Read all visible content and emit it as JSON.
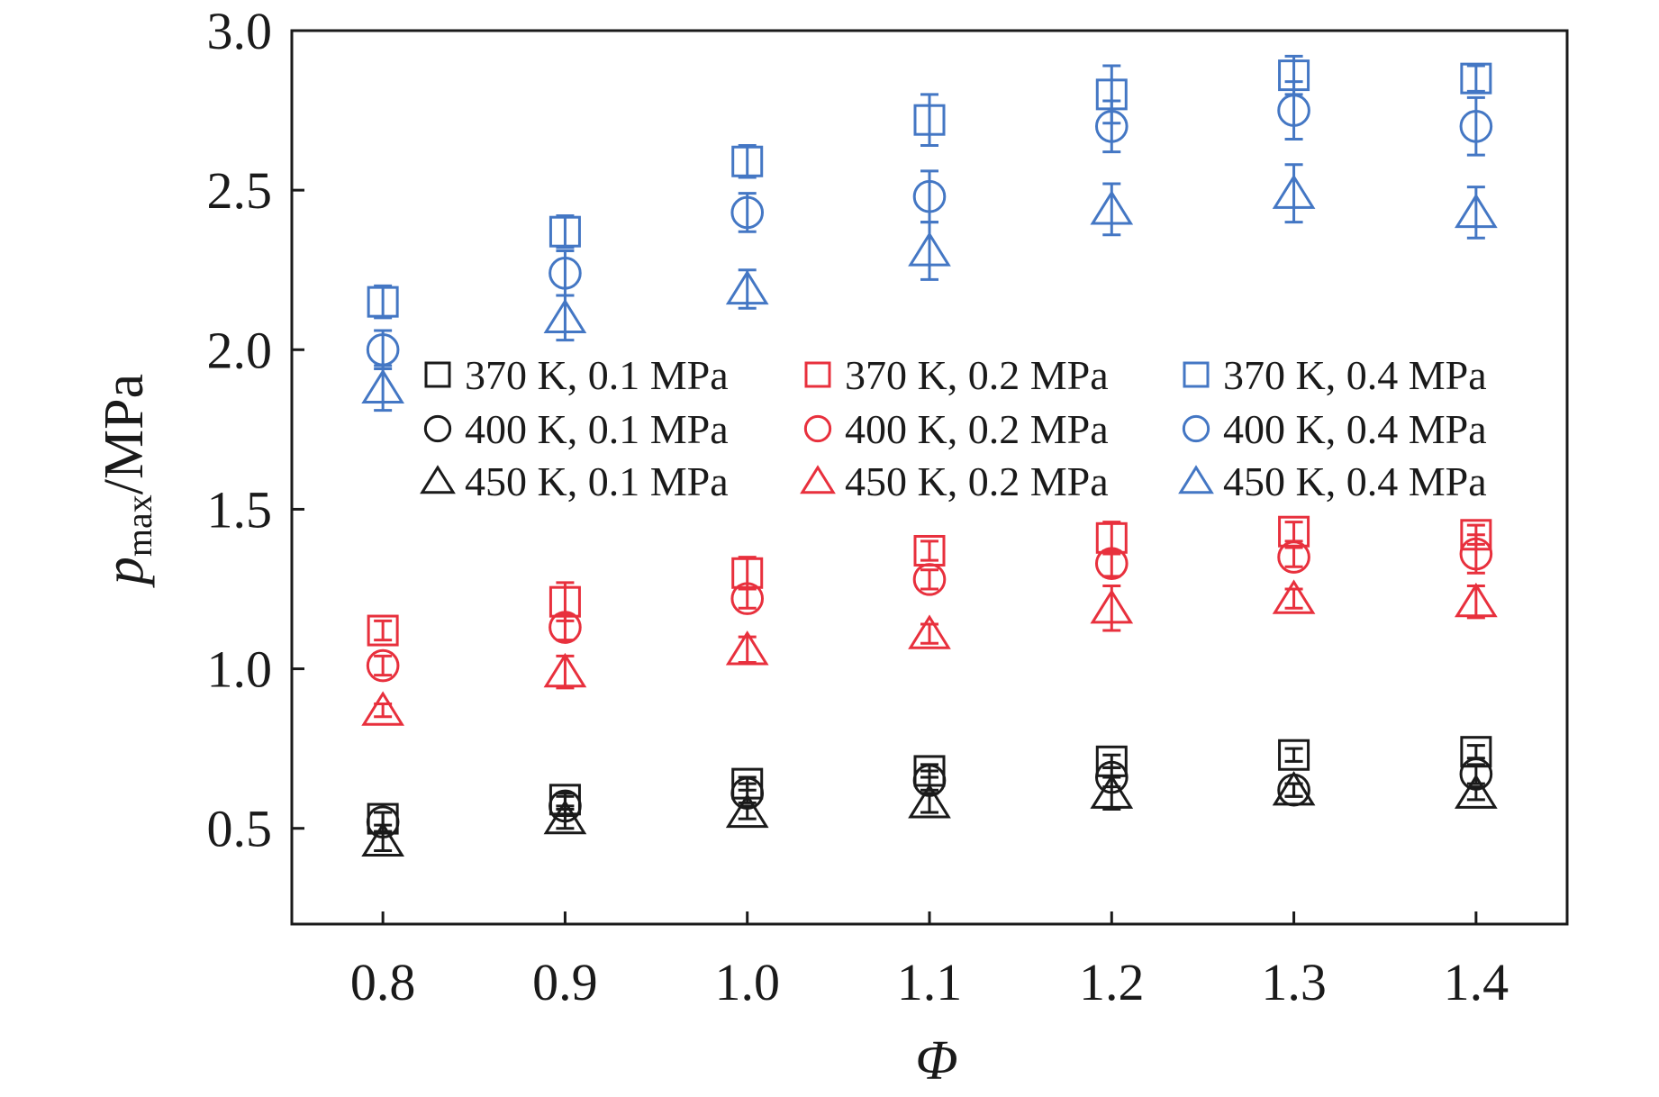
{
  "chart_data": {
    "type": "scatter",
    "title": "",
    "xlabel": "Φ",
    "ylabel_main": "p",
    "ylabel_sub": "max",
    "ylabel_unit": "/MPa",
    "xlim": [
      0.75,
      1.45
    ],
    "ylim": [
      0.2,
      3.0
    ],
    "x_ticks": [
      0.8,
      0.9,
      1.0,
      1.1,
      1.2,
      1.3,
      1.4
    ],
    "x_tick_labels": [
      "0.8",
      "0.9",
      "1.0",
      "1.1",
      "1.2",
      "1.3",
      "1.4"
    ],
    "y_ticks": [
      0.5,
      1.0,
      1.5,
      2.0,
      2.5,
      3.0
    ],
    "y_tick_labels": [
      "0.5",
      "1.0",
      "1.5",
      "2.0",
      "2.5",
      "3.0"
    ],
    "legend_position": "center-top, 3 columns",
    "x": [
      0.8,
      0.9,
      1.0,
      1.1,
      1.2,
      1.3,
      1.4
    ],
    "series": [
      {
        "name": "370 K, 0.1 MPa",
        "marker": "square",
        "color": "#1a1a1a",
        "values": [
          0.53,
          0.59,
          0.64,
          0.68,
          0.71,
          0.73,
          0.74
        ],
        "err": [
          0.02,
          0.02,
          0.02,
          0.02,
          0.02,
          0.02,
          0.02
        ]
      },
      {
        "name": "400 K, 0.1 MPa",
        "marker": "circle",
        "color": "#1a1a1a",
        "values": [
          0.52,
          0.57,
          0.61,
          0.65,
          0.66,
          0.62,
          0.67
        ],
        "err": [
          0.03,
          0.03,
          0.03,
          0.03,
          0.03,
          0.02,
          0.03
        ]
      },
      {
        "name": "450 K, 0.1 MPa",
        "marker": "triangle",
        "color": "#1a1a1a",
        "values": [
          0.46,
          0.53,
          0.55,
          0.58,
          0.61,
          0.62,
          0.61
        ],
        "err": [
          0.03,
          0.03,
          0.02,
          0.03,
          0.05,
          0.02,
          0.02
        ]
      },
      {
        "name": "370 K, 0.2 MPa",
        "marker": "square",
        "color": "#e8303d",
        "values": [
          1.12,
          1.21,
          1.3,
          1.37,
          1.41,
          1.43,
          1.42
        ],
        "err": [
          0.03,
          0.06,
          0.05,
          0.03,
          0.05,
          0.03,
          0.03
        ]
      },
      {
        "name": "400 K, 0.2 MPa",
        "marker": "circle",
        "color": "#e8303d",
        "values": [
          1.01,
          1.13,
          1.22,
          1.28,
          1.33,
          1.35,
          1.36
        ],
        "err": [
          0.03,
          0.04,
          0.03,
          0.03,
          0.04,
          0.03,
          0.06
        ]
      },
      {
        "name": "450 K, 0.2 MPa",
        "marker": "triangle",
        "color": "#e8303d",
        "values": [
          0.87,
          0.99,
          1.06,
          1.11,
          1.19,
          1.22,
          1.21
        ],
        "err": [
          0.02,
          0.05,
          0.04,
          0.03,
          0.07,
          0.03,
          0.05
        ]
      },
      {
        "name": "370 K, 0.4 MPa",
        "marker": "square",
        "color": "#4477c4",
        "values": [
          2.15,
          2.37,
          2.59,
          2.72,
          2.8,
          2.86,
          2.85
        ],
        "err": [
          0.05,
          0.05,
          0.05,
          0.08,
          0.09,
          0.06,
          0.04
        ]
      },
      {
        "name": "400 K, 0.4 MPa",
        "marker": "circle",
        "color": "#4477c4",
        "values": [
          2.0,
          2.24,
          2.43,
          2.48,
          2.7,
          2.75,
          2.7
        ],
        "err": [
          0.06,
          0.07,
          0.06,
          0.08,
          0.08,
          0.09,
          0.09
        ]
      },
      {
        "name": "450 K, 0.4 MPa",
        "marker": "triangle",
        "color": "#4477c4",
        "values": [
          1.88,
          2.1,
          2.19,
          2.31,
          2.44,
          2.49,
          2.43
        ],
        "err": [
          0.07,
          0.07,
          0.06,
          0.09,
          0.08,
          0.09,
          0.08
        ]
      }
    ]
  }
}
